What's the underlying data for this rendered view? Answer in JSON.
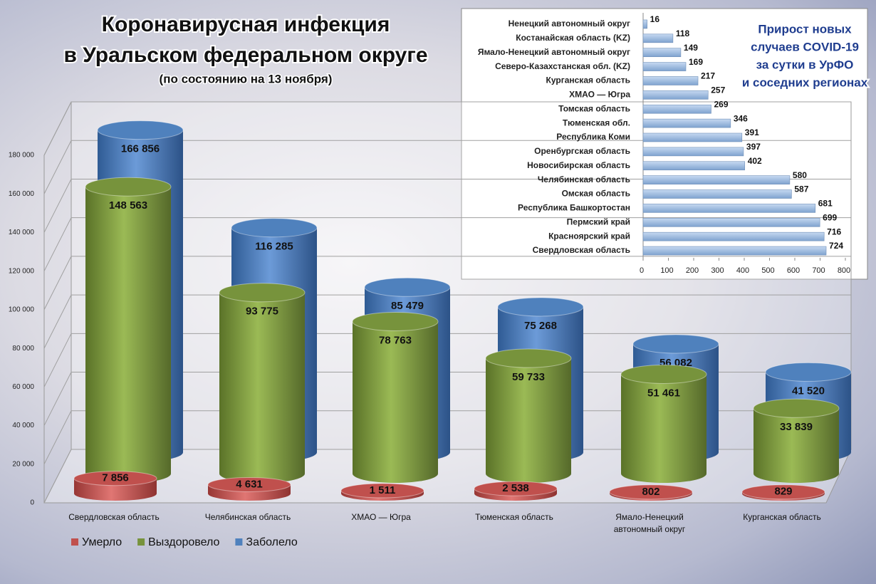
{
  "chart_data": [
    {
      "type": "bar",
      "title": [
        "Коронавирусная инфекция",
        "в Уральском федеральном округе"
      ],
      "subtitle": "(по состоянию на 13 ноября)",
      "categories": [
        "Свердловская область",
        "Челябинская область",
        "ХМАО — Югра",
        "Тюменская область",
        "Ямало-Ненецкий автономный округ",
        "Курганская область"
      ],
      "series": [
        {
          "name": "Умерло",
          "color": "#c0504d",
          "values": [
            7856,
            4631,
            1511,
            2538,
            802,
            829
          ],
          "value_labels": [
            "7 856",
            "4 631",
            "1 511",
            "2 538",
            "802",
            "829"
          ]
        },
        {
          "name": "Выздоровело",
          "color": "#77933c",
          "values": [
            148563,
            93775,
            78763,
            59733,
            51461,
            33839
          ],
          "value_labels": [
            "148 563",
            "93 775",
            "78 763",
            "59 733",
            "51 461",
            "33 839"
          ]
        },
        {
          "name": "Заболело",
          "color": "#4f81bd",
          "values": [
            166856,
            116285,
            85479,
            75268,
            56082,
            41520
          ],
          "value_labels": [
            "166 856",
            "116 285",
            "85 479",
            "75 268",
            "56 082",
            "41 520"
          ]
        }
      ],
      "ylim": [
        0,
        180000
      ],
      "yticks": [
        0,
        {
          "value": 20000,
          "label": "20 000"
        },
        {
          "value": 40000,
          "label": "40 000"
        },
        {
          "value": 60000,
          "label": "60 000"
        },
        {
          "value": 80000,
          "label": "80 000"
        },
        {
          "value": 100000,
          "label": "100 000"
        },
        {
          "value": 120000,
          "label": "120 000"
        },
        {
          "value": 140000,
          "label": "140 000"
        },
        {
          "value": 160000,
          "label": "160 000"
        },
        {
          "value": 180000,
          "label": "180 000"
        }
      ],
      "grid": true,
      "legend": "bottom-left"
    },
    {
      "type": "bar",
      "orientation": "horizontal",
      "title": [
        "Прирост новых",
        "случаев COVID-19",
        "за сутки в УрФО",
        "и соседних регионах"
      ],
      "categories": [
        "Ненецкий автономный округ",
        "Костанайская область (KZ)",
        "Ямало-Ненецкий автономный округ",
        "Северо-Казахстанская обл. (KZ)",
        "Курганская область",
        "ХМАО — Югра",
        "Томская область",
        "Тюменская обл.",
        "Республика Коми",
        "Оренбургская область",
        "Новосибирская область",
        "Челябинская область",
        "Омская область",
        "Республика Башкортостан",
        "Пермский край",
        "Красноярский край",
        "Свердловская область"
      ],
      "values": [
        16,
        118,
        149,
        169,
        217,
        257,
        269,
        346,
        391,
        397,
        402,
        580,
        587,
        681,
        699,
        716,
        724
      ],
      "color": "#95b3d7",
      "xlim": [
        0,
        800
      ],
      "xticks": [
        0,
        100,
        200,
        300,
        400,
        500,
        600,
        700,
        800
      ]
    }
  ]
}
